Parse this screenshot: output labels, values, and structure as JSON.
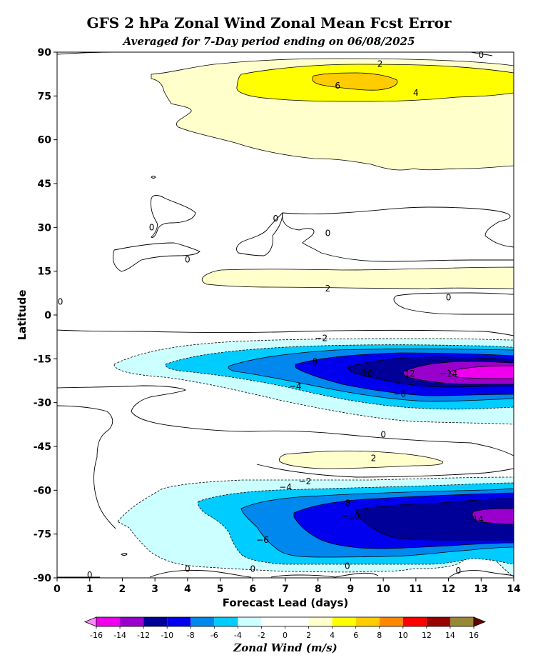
{
  "chart_data": {
    "type": "contour",
    "title": "GFS 2 hPa Zonal Wind Zonal Mean Fcst Error",
    "subtitle": "Averaged for 7-Day period ending on 06/08/2025",
    "xlabel": "Forecast Lead (days)",
    "ylabel": "Latitude",
    "xlim": [
      0,
      14
    ],
    "ylim": [
      -90,
      90
    ],
    "x_ticks": [
      "0",
      "1",
      "2",
      "3",
      "4",
      "5",
      "6",
      "7",
      "8",
      "9",
      "10",
      "11",
      "12",
      "13",
      "14"
    ],
    "y_ticks": [
      "90",
      "75",
      "60",
      "45",
      "30",
      "15",
      "0",
      "-15",
      "-30",
      "-45",
      "-60",
      "-75",
      "-90"
    ],
    "contour_labels": [
      {
        "text": "2",
        "x": 9.9,
        "lat": 86
      },
      {
        "text": "4",
        "x": 11.0,
        "lat": 76
      },
      {
        "text": "6",
        "x": 8.6,
        "lat": 78.5
      },
      {
        "text": "0",
        "x": 13.0,
        "lat": 89
      },
      {
        "text": "0",
        "x": 6.7,
        "lat": 33
      },
      {
        "text": "0",
        "x": 8.3,
        "lat": 28
      },
      {
        "text": "0",
        "x": 2.9,
        "lat": 30
      },
      {
        "text": "0",
        "x": 4.0,
        "lat": 19
      },
      {
        "text": "2",
        "x": 8.3,
        "lat": 9
      },
      {
        "text": "0",
        "x": 12.0,
        "lat": 6
      },
      {
        "text": "0",
        "x": 0.1,
        "lat": 4.5
      },
      {
        "text": "−2",
        "x": 8.1,
        "lat": -8
      },
      {
        "text": "−8",
        "x": 7.8,
        "lat": -16
      },
      {
        "text": "−4",
        "x": 7.3,
        "lat": -24.5
      },
      {
        "text": "−10",
        "x": 9.4,
        "lat": -20
      },
      {
        "text": "−12",
        "x": 10.7,
        "lat": -20
      },
      {
        "text": "−14",
        "x": 12.0,
        "lat": -20
      },
      {
        "text": "−6",
        "x": 10.5,
        "lat": -27
      },
      {
        "text": "0",
        "x": 10.0,
        "lat": -41
      },
      {
        "text": "2",
        "x": 9.7,
        "lat": -49
      },
      {
        "text": "−2",
        "x": 7.6,
        "lat": -57
      },
      {
        "text": "−4",
        "x": 7.0,
        "lat": -59
      },
      {
        "text": "−8",
        "x": 8.8,
        "lat": -64.5
      },
      {
        "text": "−10",
        "x": 9.0,
        "lat": -69
      },
      {
        "text": "−6",
        "x": 6.3,
        "lat": -77
      },
      {
        "text": "−14",
        "x": 12.8,
        "lat": -70
      },
      {
        "text": "0",
        "x": 4.0,
        "lat": -87
      },
      {
        "text": "0",
        "x": 6.0,
        "lat": -87
      },
      {
        "text": "0",
        "x": 8.9,
        "lat": -86
      },
      {
        "text": "0",
        "x": 12.3,
        "lat": -87.5
      },
      {
        "text": "0",
        "x": 1.0,
        "lat": -89
      }
    ],
    "colorbar": {
      "label": "Zonal Wind (m/s)",
      "ticks": [
        "-16",
        "-14",
        "-12",
        "-10",
        "-8",
        "-6",
        "-4",
        "-2",
        "0",
        "2",
        "4",
        "6",
        "8",
        "10",
        "12",
        "14",
        "16"
      ],
      "colors": [
        "#ee00ee",
        "#9900cc",
        "#000099",
        "#0000ee",
        "#0088ee",
        "#00ccff",
        "#ccffff",
        "#ffffff",
        "#ffffff",
        "#ffffcc",
        "#ffff00",
        "#ffcc00",
        "#ff8800",
        "#ff0000",
        "#990000",
        "#998833"
      ],
      "under_color": "#ff88ff",
      "over_color": "#660000"
    }
  }
}
